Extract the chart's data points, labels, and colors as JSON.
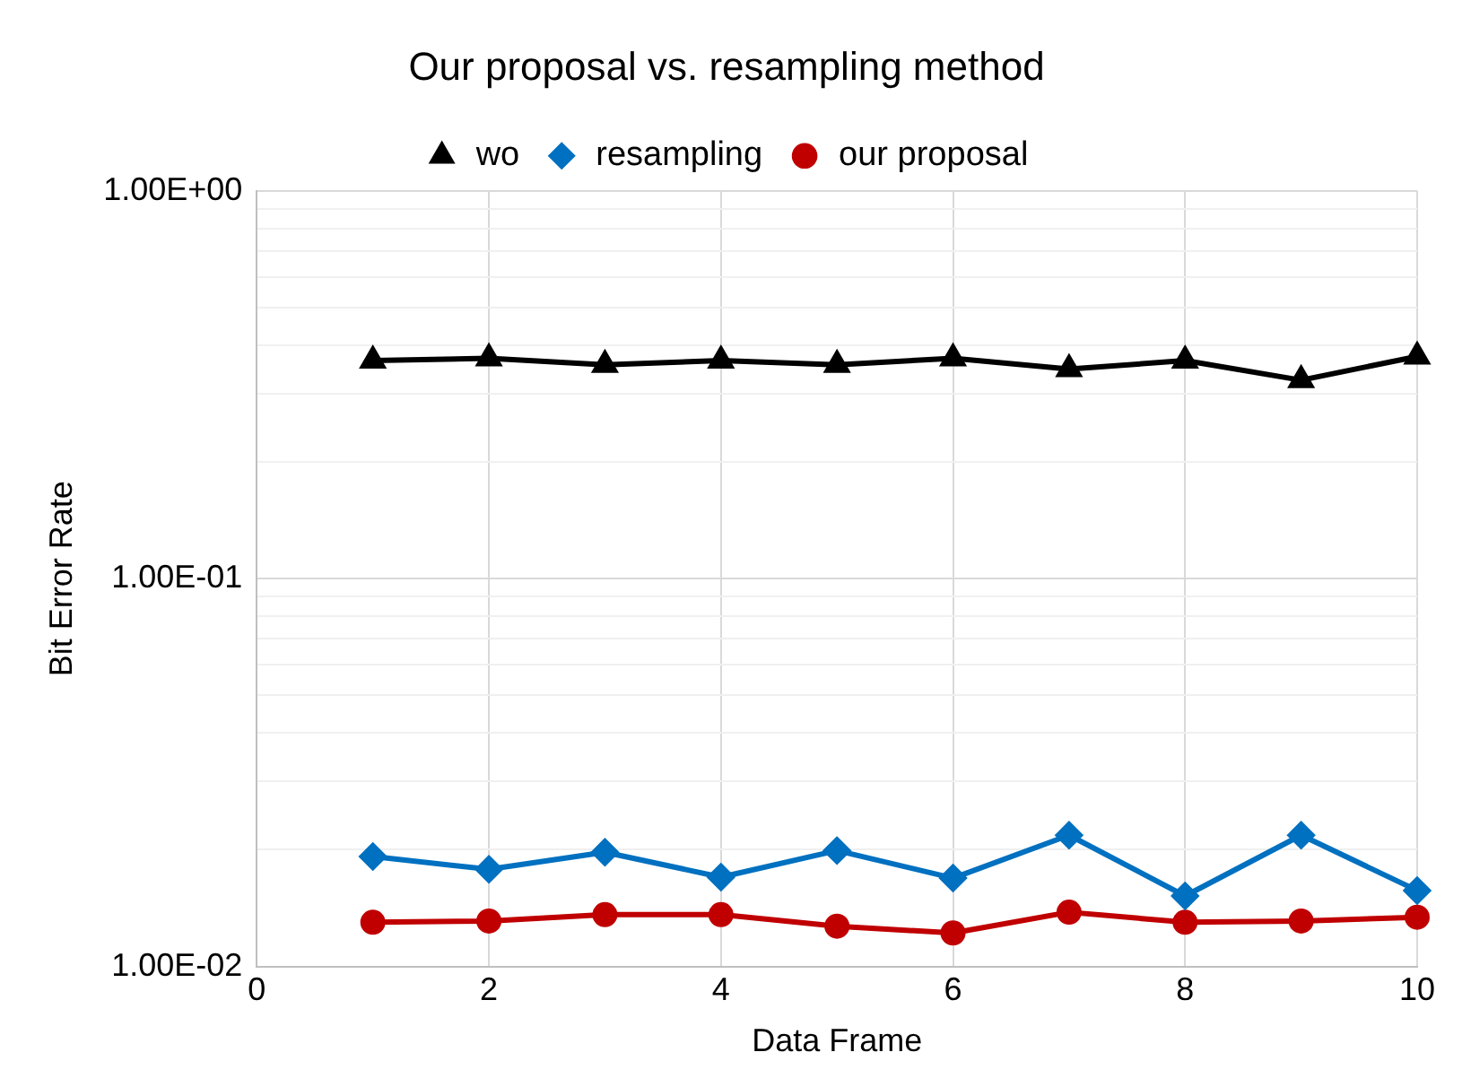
{
  "chart_data": {
    "type": "line",
    "title": "Our proposal vs. resampling method",
    "xlabel": "Data Frame",
    "ylabel": "Bit Error Rate",
    "x": [
      1,
      2,
      3,
      4,
      5,
      6,
      7,
      8,
      9,
      10
    ],
    "series": [
      {
        "name": "wo",
        "color": "#000000",
        "marker": "triangle",
        "values": [
          0.365,
          0.37,
          0.356,
          0.365,
          0.356,
          0.37,
          0.347,
          0.365,
          0.325,
          0.374
        ]
      },
      {
        "name": "resampling",
        "color": "#0070c0",
        "marker": "diamond",
        "values": [
          0.0192,
          0.0178,
          0.0197,
          0.017,
          0.0199,
          0.0169,
          0.0218,
          0.0152,
          0.0218,
          0.0157
        ]
      },
      {
        "name": "our proposal",
        "color": "#c00000",
        "marker": "circle",
        "values": [
          0.013,
          0.0131,
          0.0136,
          0.0136,
          0.0127,
          0.0122,
          0.0138,
          0.013,
          0.0131,
          0.0134
        ]
      }
    ],
    "log": "y",
    "xlim": [
      0,
      10
    ],
    "xticks": [
      0,
      2,
      4,
      6,
      8,
      10
    ],
    "ylim": [
      0.01,
      1
    ],
    "yticks": [
      {
        "value": 0.01,
        "label": "1.00E-02"
      },
      {
        "value": 0.02,
        "label": null
      },
      {
        "value": 0.03,
        "label": null
      },
      {
        "value": 0.04,
        "label": null
      },
      {
        "value": 0.05,
        "label": null
      },
      {
        "value": 0.06,
        "label": null
      },
      {
        "value": 0.07,
        "label": null
      },
      {
        "value": 0.08,
        "label": null
      },
      {
        "value": 0.09,
        "label": null
      },
      {
        "value": 0.1,
        "label": "1.00E-01"
      },
      {
        "value": 0.2,
        "label": null
      },
      {
        "value": 0.3,
        "label": null
      },
      {
        "value": 0.4,
        "label": null
      },
      {
        "value": 0.5,
        "label": null
      },
      {
        "value": 0.6,
        "label": null
      },
      {
        "value": 0.7,
        "label": null
      },
      {
        "value": 0.8,
        "label": null
      },
      {
        "value": 0.9,
        "label": null
      },
      {
        "value": 1,
        "label": "1.00E+00"
      }
    ],
    "grid": true,
    "legend": "top",
    "line_style": "solid"
  }
}
